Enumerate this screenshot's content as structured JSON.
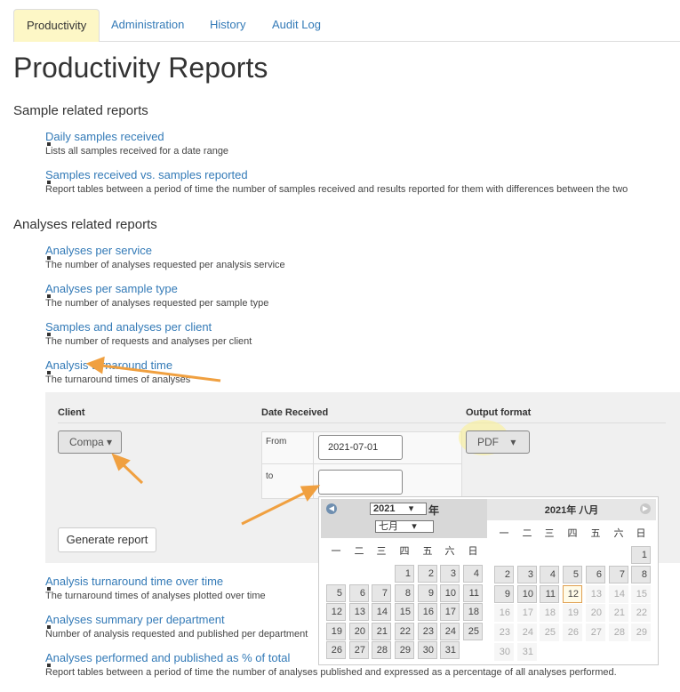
{
  "tabs": [
    "Productivity",
    "Administration",
    "History",
    "Audit Log"
  ],
  "title": "Productivity Reports",
  "sections": [
    {
      "heading": "Sample related reports",
      "items": [
        {
          "link": "Daily samples received",
          "description": "Lists all samples received for a date range"
        },
        {
          "link": "Samples received vs. samples reported",
          "description": "Report tables between a period of time the number of samples received and results reported for them with differences between the two"
        }
      ]
    },
    {
      "heading": "Analyses related reports",
      "items": [
        {
          "link": "Analyses per service",
          "description": "The number of analyses requested per analysis service"
        },
        {
          "link": "Analyses per sample type",
          "description": "The number of analyses requested per sample type"
        },
        {
          "link": "Samples and analyses per client",
          "description": "The number of requests and analyses per client"
        },
        {
          "link": "Analysis turnaround time",
          "description": "The turnaround times of analyses"
        }
      ]
    }
  ],
  "form": {
    "client_label": "Client",
    "client_value": "Compa",
    "date_label": "Date Received",
    "from_label": "From",
    "from_value": "2021-07-01",
    "to_label": "to",
    "format_label": "Output format",
    "format_value": "PDF",
    "button": "Generate report"
  },
  "more_items": [
    {
      "link": "Analysis turnaround time over time",
      "description": "The turnaround times of analyses plotted over time"
    },
    {
      "link": "Analyses summary per department",
      "description": "Number of analysis requested and published per department"
    },
    {
      "link": "Analyses performed and published as % of total",
      "description": "Report tables between a period of time the number of analyses published and expressed as a percentage of all analyses performed."
    }
  ],
  "datepicker": {
    "year": "2021",
    "year_suffix": "年",
    "month": "七月",
    "weekdays": [
      "一",
      "二",
      "三",
      "四",
      "五",
      "六",
      "日"
    ],
    "left_days": [
      [
        null,
        null,
        null,
        1,
        2,
        3,
        4
      ],
      [
        5,
        6,
        7,
        8,
        9,
        10,
        11
      ],
      [
        12,
        13,
        14,
        15,
        16,
        17,
        18
      ],
      [
        19,
        20,
        21,
        22,
        23,
        24,
        25
      ],
      [
        26,
        27,
        28,
        29,
        30,
        31,
        null
      ]
    ],
    "right_title": "2021年 八月",
    "right_days": [
      [
        null,
        null,
        null,
        null,
        null,
        null,
        1
      ],
      [
        2,
        3,
        4,
        5,
        6,
        7,
        8
      ],
      [
        9,
        10,
        11,
        12,
        13,
        14,
        15
      ],
      [
        16,
        17,
        18,
        19,
        20,
        21,
        22
      ],
      [
        23,
        24,
        25,
        26,
        27,
        28,
        29
      ],
      [
        30,
        31,
        null,
        null,
        null,
        null,
        null
      ]
    ],
    "today": 12
  }
}
